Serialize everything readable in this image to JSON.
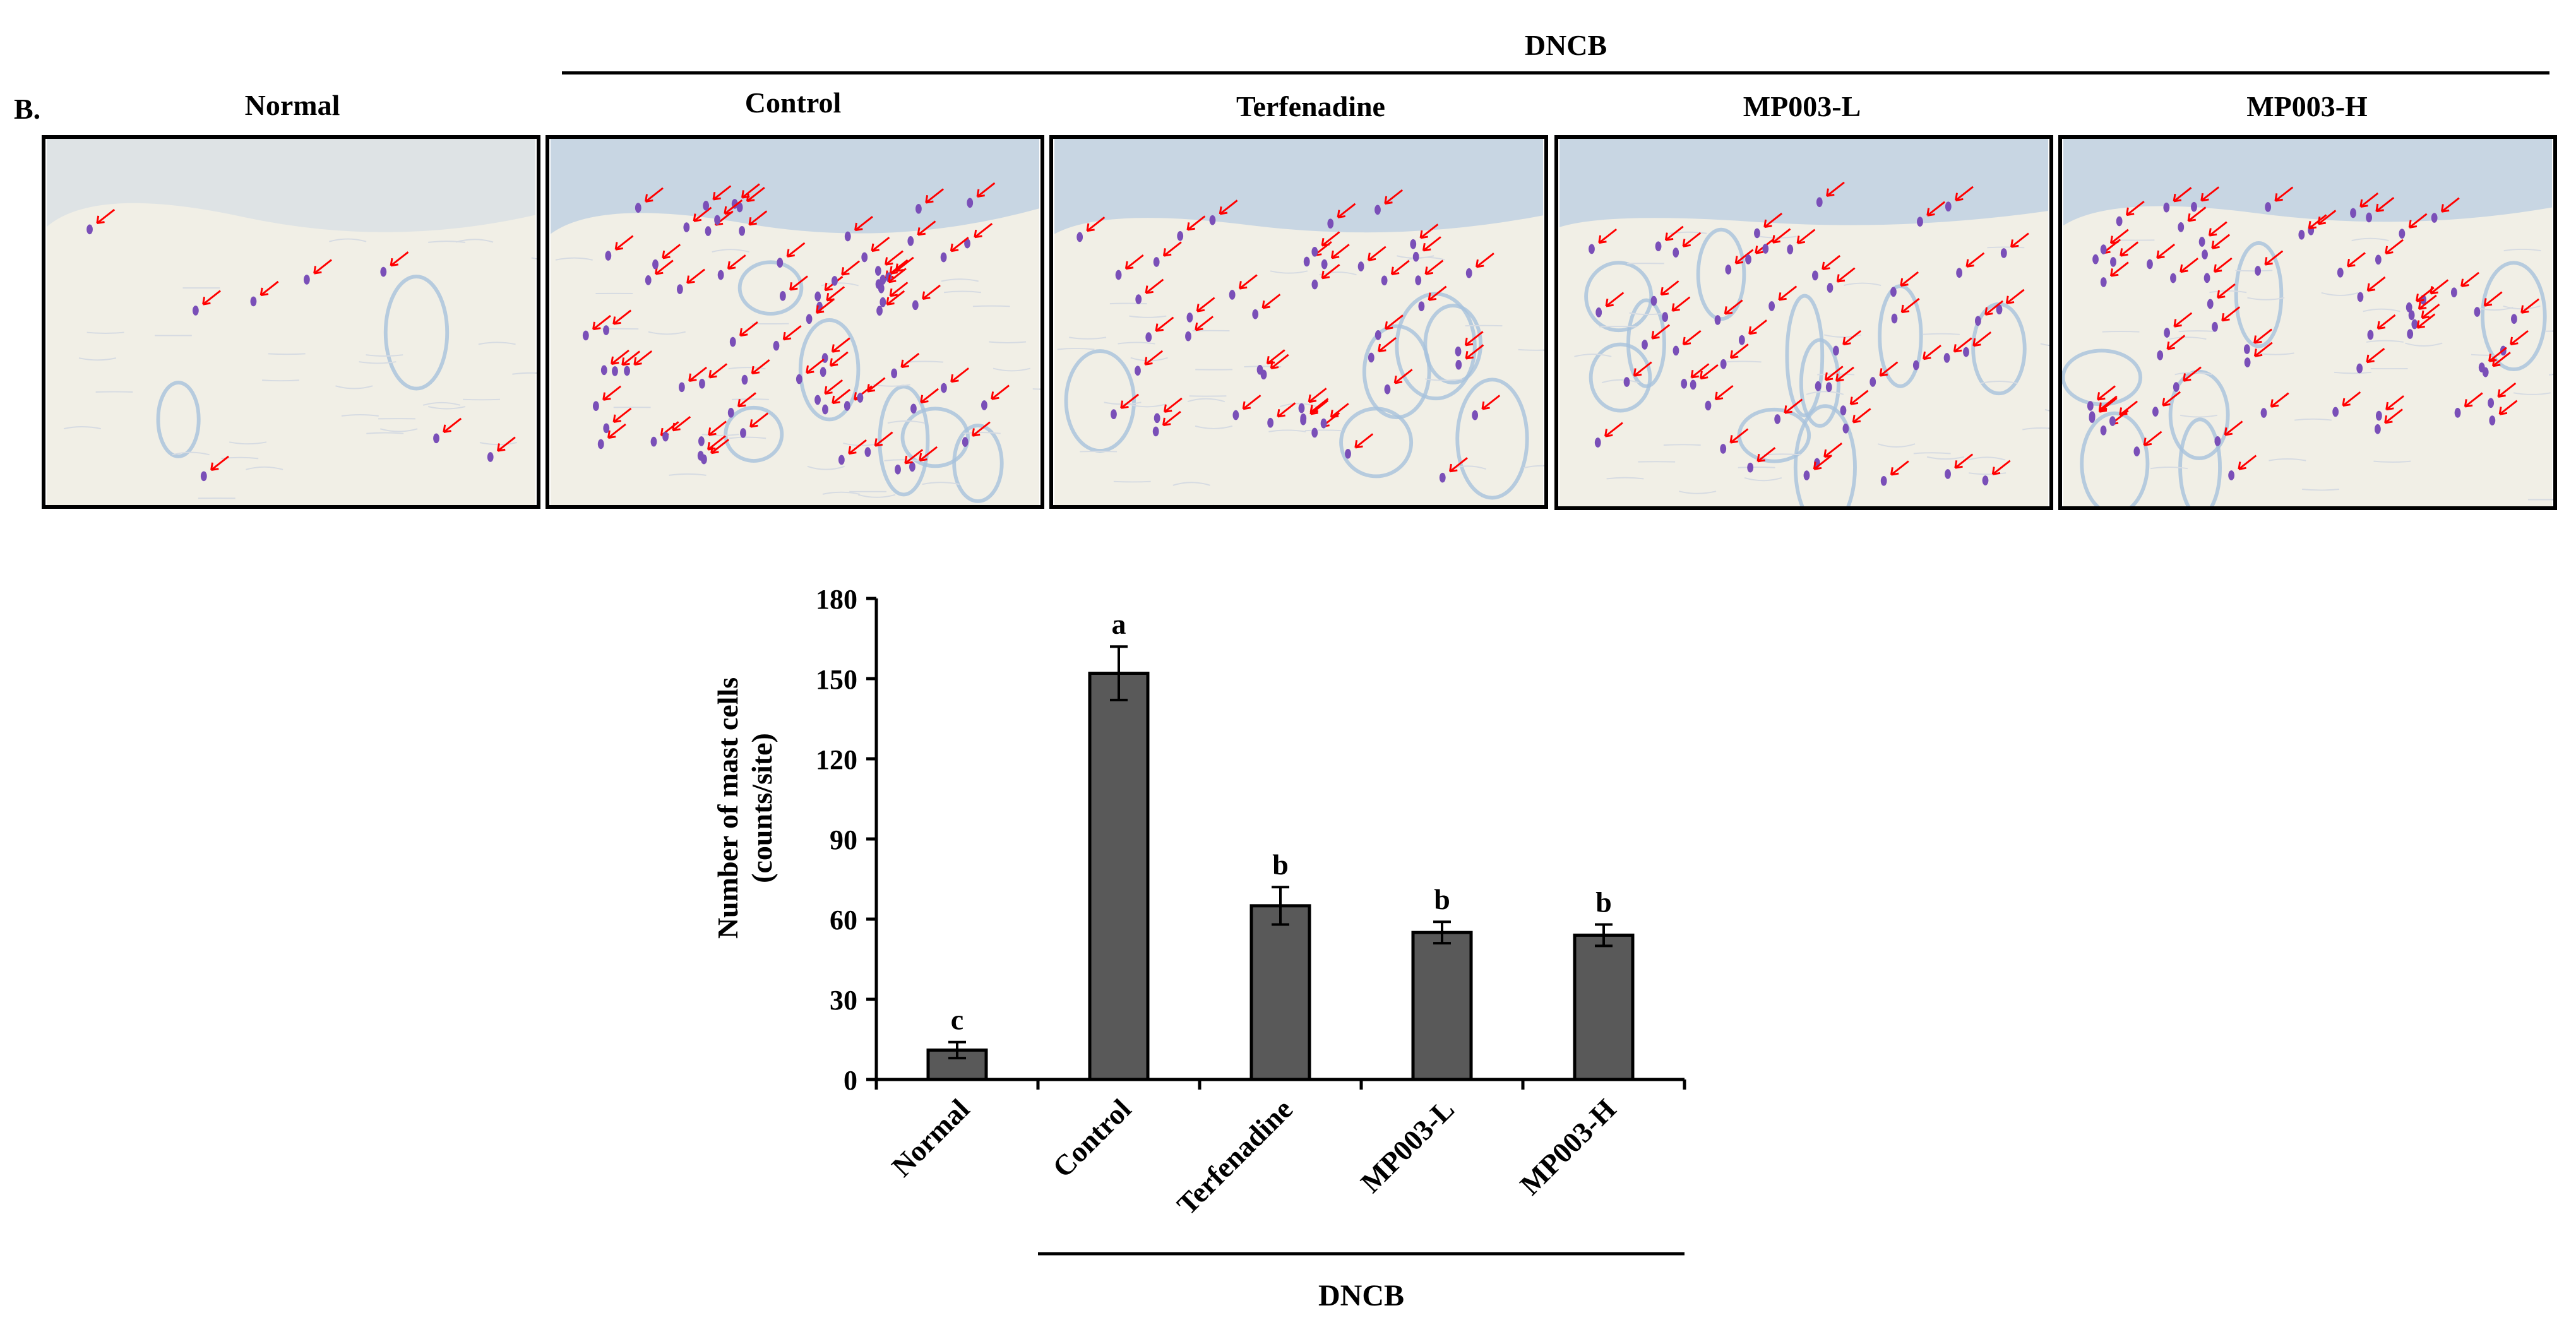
{
  "panel_label": "B.",
  "dncb_top": "DNCB",
  "micrograph_titles": [
    "Normal",
    "Control",
    "Terfenadine",
    "MP003-L",
    "MP003-H"
  ],
  "micrograph_arrow_counts": [
    8,
    70,
    45,
    50,
    60
  ],
  "colors": {
    "bar": "#595959",
    "arrow": "#ff0000",
    "tissue_bg": "#f1efe6",
    "stain": "#b9cde2",
    "mast": "#7a4fb8"
  },
  "chart_data": {
    "type": "bar",
    "categories": [
      "Normal",
      "Control",
      "Terfenadine",
      "MP003-L",
      "MP003-H"
    ],
    "values": [
      11,
      152,
      65,
      55,
      54
    ],
    "errors": [
      3,
      10,
      7,
      4,
      4
    ],
    "letters": [
      "c",
      "a",
      "b",
      "b",
      "b"
    ],
    "ylabel_line1": "Number of mast cells",
    "ylabel_line2": "(counts/site)",
    "ylim": [
      0,
      180
    ],
    "yticks": [
      0,
      30,
      60,
      90,
      120,
      150,
      180
    ],
    "group_label": "DNCB",
    "grid": false
  }
}
